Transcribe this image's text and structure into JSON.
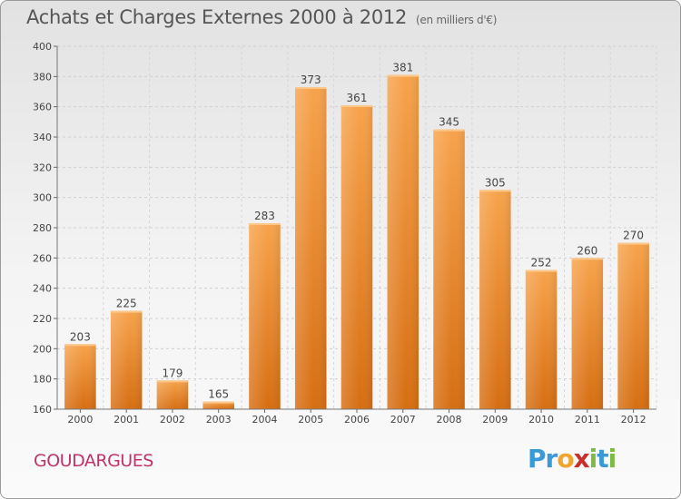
{
  "header": {
    "title": "Achats et Charges Externes 2000 à 2012",
    "subtitle": "(en milliers d'€)"
  },
  "footer": {
    "town": "GOUDARGUES",
    "logo_letters": [
      {
        "ch": "P",
        "color": "#3a9ad9"
      },
      {
        "ch": "r",
        "color": "#3a9ad9"
      },
      {
        "ch": "o",
        "color": "#f2a52e"
      },
      {
        "ch": "x",
        "color": "#c9302c"
      },
      {
        "ch": "i",
        "color": "#7dbb42"
      },
      {
        "ch": "t",
        "color": "#3a9ad9"
      },
      {
        "ch": "i",
        "color": "#7dbb42"
      }
    ]
  },
  "chart_data": {
    "type": "bar",
    "title": "Achats et Charges Externes 2000 à 2012",
    "subtitle": "(en milliers d'€)",
    "categories": [
      "2000",
      "2001",
      "2002",
      "2003",
      "2004",
      "2005",
      "2006",
      "2007",
      "2008",
      "2009",
      "2010",
      "2011",
      "2012"
    ],
    "values": [
      203,
      225,
      179,
      165,
      283,
      373,
      361,
      381,
      345,
      305,
      252,
      260,
      270
    ],
    "ylim": [
      160,
      400
    ],
    "yticks": [
      160,
      180,
      200,
      220,
      240,
      260,
      280,
      300,
      320,
      340,
      360,
      380,
      400
    ],
    "grid": true,
    "bar_color_top": "#f7a34c",
    "bar_color_bottom": "#d66e12"
  }
}
